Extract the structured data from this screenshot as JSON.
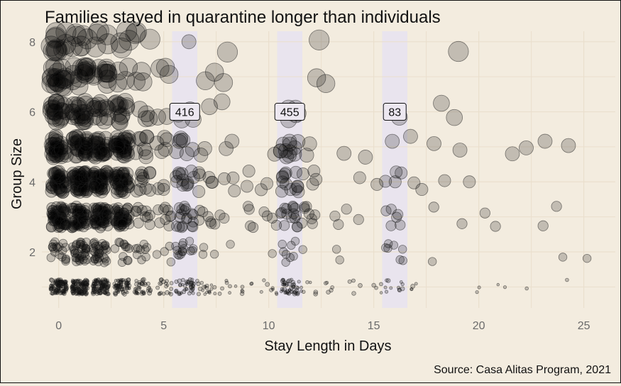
{
  "chart_data": {
    "type": "scatter",
    "title": "Families stayed in quarantine longer than individuals",
    "xlabel": "Stay Length in Days",
    "ylabel": "Group Size",
    "caption": "Source: Casa Alitas Program, 2021",
    "xlim": [
      -0.8,
      26.5
    ],
    "ylim": [
      0.4,
      8.3
    ],
    "x_ticks": [
      0,
      5,
      10,
      15,
      20,
      25
    ],
    "y_ticks": [
      2,
      4,
      6,
      8
    ],
    "grid": true,
    "point_style": {
      "fill": "#000000",
      "opacity": 0.2,
      "stroke": "#1f1f1f",
      "jitter": true,
      "size_scales_with_group_size": true
    },
    "highlight_bands": [
      {
        "day": 6,
        "label": "416"
      },
      {
        "day": 11,
        "label": "455"
      },
      {
        "day": 16,
        "label": "83"
      }
    ],
    "notable_points": [
      {
        "x": 6.2,
        "y": 8.0
      },
      {
        "x": 0.2,
        "y": 7.8
      },
      {
        "x": 1.1,
        "y": 7.8
      },
      {
        "x": 21.6,
        "y": 4.8
      },
      {
        "x": 23.7,
        "y": 3.3
      },
      {
        "x": 24.2,
        "y": 1.2
      }
    ],
    "colors": {
      "background": "#f3ecdf",
      "band": "#e8e4ee",
      "grid": "#eadfcd",
      "points": "#000000"
    }
  }
}
